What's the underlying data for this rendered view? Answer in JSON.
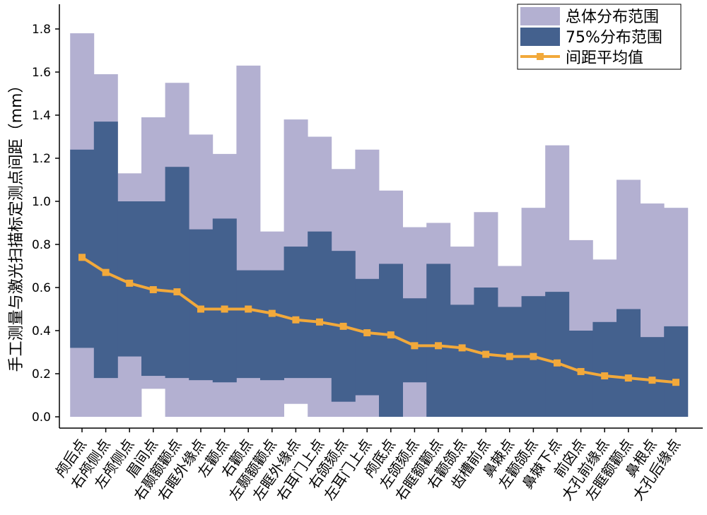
{
  "chart_data": {
    "type": "bar",
    "title": "",
    "xlabel": "",
    "ylabel": "手工测量与激光扫描标定测点间距（mm）",
    "ylim": [
      0,
      1.9
    ],
    "yticks": [
      "0.0",
      "0.2",
      "0.4",
      "0.6",
      "0.8",
      "1.0",
      "1.2",
      "1.4",
      "1.6",
      "1.8"
    ],
    "categories": [
      "颅后点",
      "右颅侧点",
      "左颅侧点",
      "眉间点",
      "右颞额颧点",
      "右眶外缘点",
      "左颧点",
      "右颧点",
      "左颞额颧点",
      "左眶外缘点",
      "右耳门上点",
      "右颌颏点",
      "左耳门上点",
      "颅底点",
      "左颌颏点",
      "右眶额颧点",
      "右颧颌点",
      "齿槽前点",
      "鼻棘点",
      "左颧颌点",
      "鼻棘下点",
      "前囟点",
      "大孔前缘点",
      "左眶额颧点",
      "鼻根点",
      "大孔后缘点"
    ],
    "series": [
      {
        "name": "总体分布范围",
        "low": [
          0.0,
          0.0,
          0.0,
          0.13,
          0.0,
          0.0,
          0.0,
          0.0,
          0.0,
          0.06,
          0.0,
          0.0,
          0.0,
          0.0,
          0.0,
          0.0,
          0.0,
          0.0,
          0.0,
          0.0,
          0.0,
          0.0,
          0.0,
          0.0,
          0.0,
          0.0
        ],
        "high": [
          1.78,
          1.59,
          1.13,
          1.39,
          1.55,
          1.31,
          1.22,
          1.63,
          0.86,
          1.38,
          1.3,
          1.15,
          1.24,
          1.05,
          0.88,
          0.9,
          0.79,
          0.95,
          0.7,
          0.97,
          1.26,
          0.82,
          0.73,
          1.1,
          0.99,
          0.97
        ],
        "color": "#b3b0d1"
      },
      {
        "name": "75%分布范围",
        "low": [
          0.32,
          0.18,
          0.28,
          0.19,
          0.18,
          0.17,
          0.16,
          0.18,
          0.17,
          0.18,
          0.18,
          0.07,
          0.1,
          0.0,
          0.16,
          0.0,
          0.0,
          0.0,
          0.0,
          0.0,
          0.0,
          0.0,
          0.0,
          0.0,
          0.0,
          0.0
        ],
        "high": [
          1.24,
          1.37,
          1.0,
          1.0,
          1.16,
          0.87,
          0.92,
          0.68,
          0.68,
          0.79,
          0.86,
          0.77,
          0.64,
          0.71,
          0.55,
          0.71,
          0.52,
          0.6,
          0.51,
          0.56,
          0.58,
          0.4,
          0.44,
          0.5,
          0.37,
          0.42
        ],
        "color": "#44618e"
      },
      {
        "name": "间距平均值",
        "type": "line",
        "values": [
          0.74,
          0.67,
          0.62,
          0.59,
          0.58,
          0.5,
          0.5,
          0.5,
          0.48,
          0.45,
          0.44,
          0.42,
          0.39,
          0.38,
          0.33,
          0.33,
          0.32,
          0.29,
          0.28,
          0.28,
          0.25,
          0.21,
          0.19,
          0.18,
          0.17,
          0.16
        ],
        "color": "#f2a93b"
      }
    ],
    "legend": {
      "placement": "top-right",
      "entries": [
        "总体分布范围",
        "75%分布范围",
        "间距平均值"
      ]
    }
  }
}
